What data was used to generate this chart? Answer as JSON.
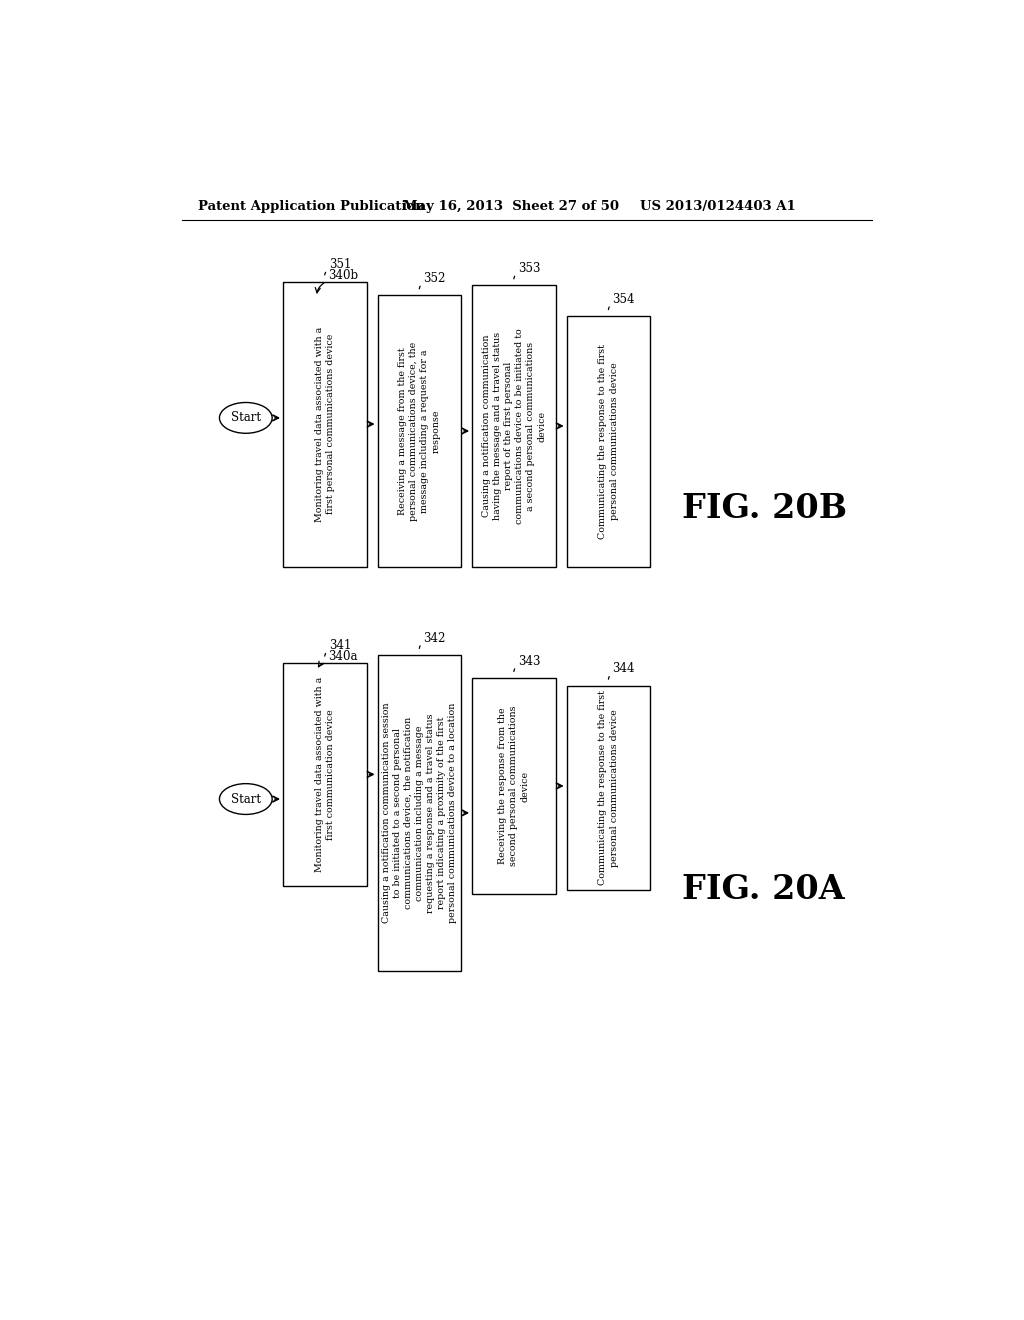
{
  "bg_color": "#ffffff",
  "header_left": "Patent Application Publication",
  "header_mid": "May 16, 2013  Sheet 27 of 50",
  "header_right": "US 2013/0124403 A1",
  "fig20b": {
    "label": "FIG. 20B",
    "flow_label": "340b",
    "start_label": "Start",
    "nodes": [
      {
        "id": "351",
        "text": "Monitoring travel data associated with a\nfirst personal communications device"
      },
      {
        "id": "352",
        "text": "Receiving a message from the first\npersonal communications device, the\nmessage including a request for a\nresponse"
      },
      {
        "id": "353",
        "text": "Causing a notification communication\nhaving the message and a travel status\nreport of the first personal\ncommunications device to be initiated to\na second personal communications\ndevice"
      },
      {
        "id": "354",
        "text": "Communicating the response to the first\npersonal communications device"
      }
    ]
  },
  "fig20a": {
    "label": "FIG. 20A",
    "flow_label": "340a",
    "start_label": "Start",
    "nodes": [
      {
        "id": "341",
        "text": "Monitoring travel data associated with a\nfirst communication device"
      },
      {
        "id": "342",
        "text": "Causing a notification communication session\nto be initiated to a second personal\ncommunications device, the notification\ncommunication including a message\nrequesting a response and a travel status\nreport indicating a proximity of the first\npersonal communications device to a location"
      },
      {
        "id": "343",
        "text": "Receiving the response from the\nsecond personal communications\ndevice"
      },
      {
        "id": "344",
        "text": "Communicating the response to the first\npersonal communications device"
      }
    ]
  }
}
